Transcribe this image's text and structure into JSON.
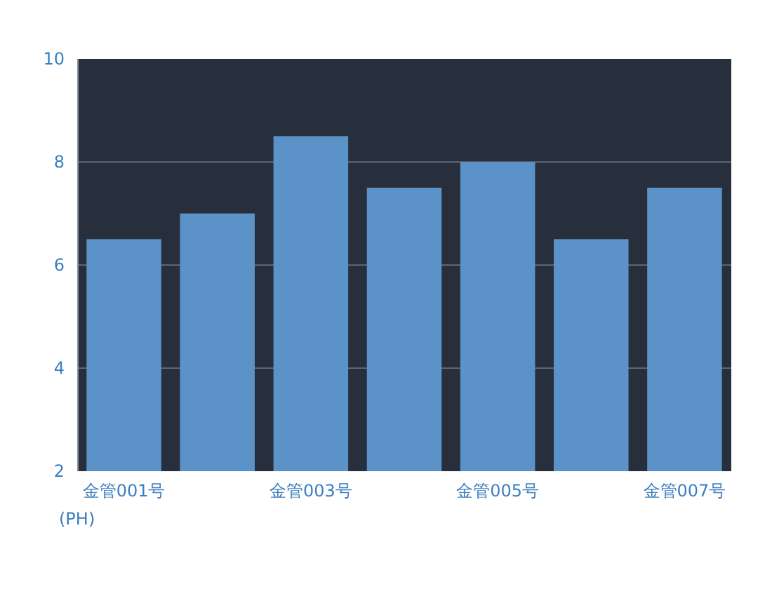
{
  "chart_data": {
    "type": "bar",
    "ylabel": "(PH)",
    "categories": [
      "金管001号",
      null,
      "金管003号",
      null,
      "金管005号",
      null,
      "金管007号"
    ],
    "values": [
      6.5,
      7,
      8.5,
      7.5,
      8,
      6.5,
      7.5
    ],
    "color": "#5b93c9",
    "ylim": [
      2,
      10
    ],
    "yticks": [
      2,
      4,
      6,
      8,
      10
    ],
    "grid": "y"
  }
}
